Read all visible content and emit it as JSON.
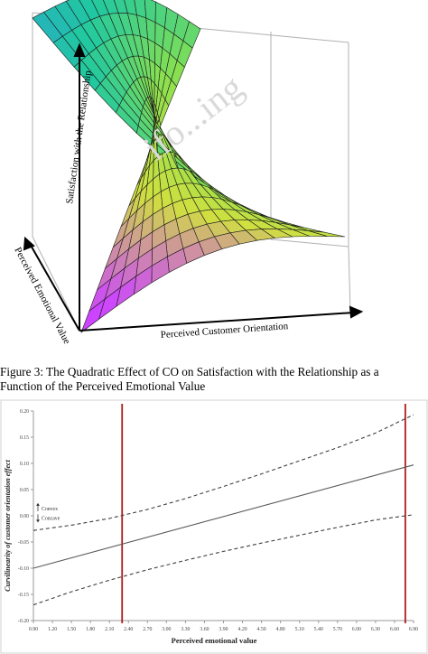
{
  "figure_top": {
    "axis_z_label": "Satisfaction with the Relationship",
    "axis_y_label": "Perceived Emotional Value",
    "axis_x_label": "Perceived Customer Orientation",
    "surface_colormap": [
      "#2d8fe8",
      "#21c8a0",
      "#88e050",
      "#d0e040",
      "#cc44ff"
    ]
  },
  "caption": {
    "line1": "Figure 3: The Quadratic Effect of CO on Satisfaction with the Relationship as a",
    "line2": "Function of the Perceived Emotional Value"
  },
  "watermark": {
    "text": "ifo...ing"
  },
  "chart_data": {
    "type": "line",
    "xlabel": "Perceived emotional value",
    "ylabel": "Curvilinearity of customer orientation effect",
    "xticks": [
      "0.90",
      "1.20",
      "1.50",
      "1.80",
      "2.10",
      "2.40",
      "2.70",
      "3.00",
      "3.30",
      "3.60",
      "3.90",
      "4.20",
      "4.50",
      "4.80",
      "5.10",
      "5.40",
      "5.70",
      "6.00",
      "6.30",
      "6.60",
      "6.90"
    ],
    "yticks": [
      "0.20",
      "0.15",
      "0.10",
      "0.05",
      "0.00",
      "-0.05",
      "-0.10",
      "-0.15",
      "-0.20"
    ],
    "xlim": [
      0.9,
      6.9
    ],
    "ylim": [
      -0.2,
      0.2
    ],
    "grid": false,
    "series": [
      {
        "role": "estimate",
        "style": "solid",
        "color": "#595959",
        "x": [
          0.9,
          6.9
        ],
        "y": [
          -0.1,
          0.097
        ]
      },
      {
        "role": "upper-bound",
        "style": "dashed",
        "color": "#404040",
        "x": [
          0.9,
          1.5,
          2.1,
          2.7,
          3.3,
          3.9,
          4.5,
          5.1,
          5.7,
          6.3,
          6.9
        ],
        "y": [
          -0.028,
          -0.018,
          -0.005,
          0.012,
          0.033,
          0.056,
          0.08,
          0.105,
          0.13,
          0.158,
          0.193
        ]
      },
      {
        "role": "lower-bound",
        "style": "dashed",
        "color": "#404040",
        "x": [
          0.9,
          1.5,
          2.1,
          2.7,
          3.3,
          3.9,
          4.5,
          5.1,
          5.7,
          6.3,
          6.9
        ],
        "y": [
          -0.17,
          -0.145,
          -0.123,
          -0.103,
          -0.085,
          -0.068,
          -0.052,
          -0.037,
          -0.022,
          -0.008,
          0.002
        ]
      }
    ],
    "vertical_lines": [
      {
        "x": 2.3,
        "color": "#b01c1c"
      },
      {
        "x": 6.77,
        "color": "#b01c1c"
      }
    ],
    "annotations": [
      {
        "text": "Convex",
        "arrow": "up",
        "y": 0.014
      },
      {
        "text": "Concave",
        "arrow": "down",
        "y": -0.004
      }
    ]
  }
}
